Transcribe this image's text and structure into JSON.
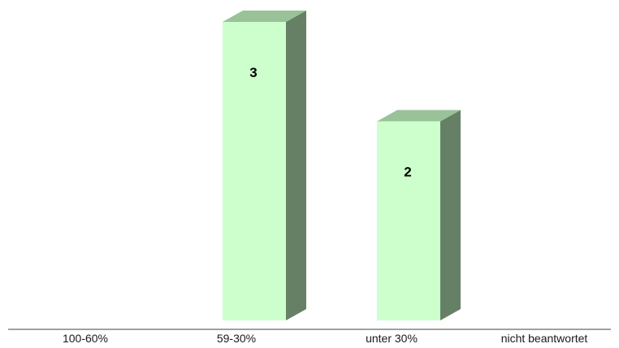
{
  "chart_data": {
    "type": "bar",
    "categories": [
      "100-60%",
      "59-30%",
      "unter 30%",
      "nicht beantwortet"
    ],
    "values": [
      0,
      3,
      2,
      0
    ],
    "data_labels": [
      "",
      "3",
      "2",
      ""
    ],
    "title": "",
    "xlabel": "",
    "ylabel": "",
    "ylim": [
      0,
      3
    ],
    "grid": false,
    "legend": "none",
    "style": "3d-column",
    "colors": {
      "front": "#ccffcc",
      "top": "#99c299",
      "side": "#668066",
      "axis": "#808080"
    }
  }
}
